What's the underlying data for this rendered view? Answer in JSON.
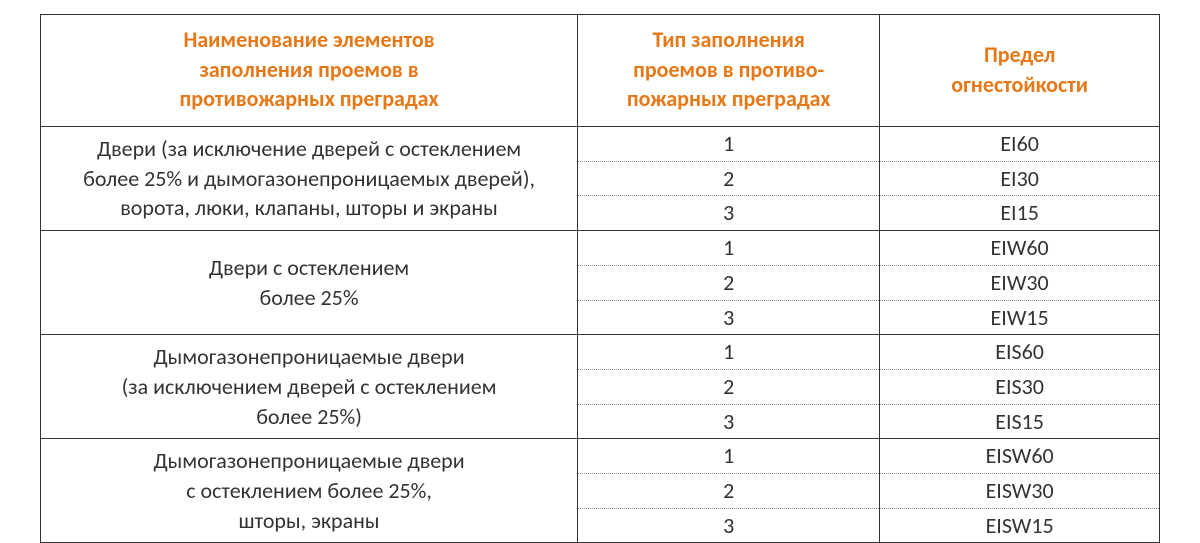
{
  "table": {
    "header_color": "#e77817",
    "text_color": "#333333",
    "border_color": "#333333",
    "dotted_color": "#8a8a8a",
    "background_color": "#ffffff",
    "font_size_pt": 16,
    "columns": [
      {
        "key": "name",
        "width_pct": 48,
        "lines": [
          "Наименование элементов",
          "заполнения проемов в",
          "противожарных преградах"
        ]
      },
      {
        "key": "type",
        "width_pct": 27,
        "lines": [
          "Тип заполнения",
          "проемов в  противо-",
          "пожарных преградах"
        ]
      },
      {
        "key": "limit",
        "width_pct": 25,
        "lines": [
          "Предел",
          "огнестойкости"
        ]
      }
    ],
    "groups": [
      {
        "desc_lines": [
          "Двери (за исключение дверей с остеклением",
          "более 25% и дымогазонепроницаемых дверей),",
          "ворота, люки, клапаны, шторы и экраны"
        ],
        "rows": [
          {
            "type": "1",
            "limit": "EI60"
          },
          {
            "type": "2",
            "limit": "EI30"
          },
          {
            "type": "3",
            "limit": "EI15"
          }
        ]
      },
      {
        "desc_lines": [
          "Двери с остеклением",
          "более 25%"
        ],
        "rows": [
          {
            "type": "1",
            "limit": "EIW60"
          },
          {
            "type": "2",
            "limit": "EIW30"
          },
          {
            "type": "3",
            "limit": "EIW15"
          }
        ]
      },
      {
        "desc_lines": [
          "Дымогазонепроницаемые двери",
          "(за исключением дверей с остеклением",
          "более 25%)"
        ],
        "rows": [
          {
            "type": "1",
            "limit": "EIS60"
          },
          {
            "type": "2",
            "limit": "EIS30"
          },
          {
            "type": "3",
            "limit": "EIS15"
          }
        ]
      },
      {
        "desc_lines": [
          "Дымогазонепроницаемые двери",
          "с остеклением более 25%,",
          "шторы, экраны"
        ],
        "rows": [
          {
            "type": "1",
            "limit": "EISW60"
          },
          {
            "type": "2",
            "limit": "EISW30"
          },
          {
            "type": "3",
            "limit": "EISW15"
          }
        ]
      }
    ]
  }
}
